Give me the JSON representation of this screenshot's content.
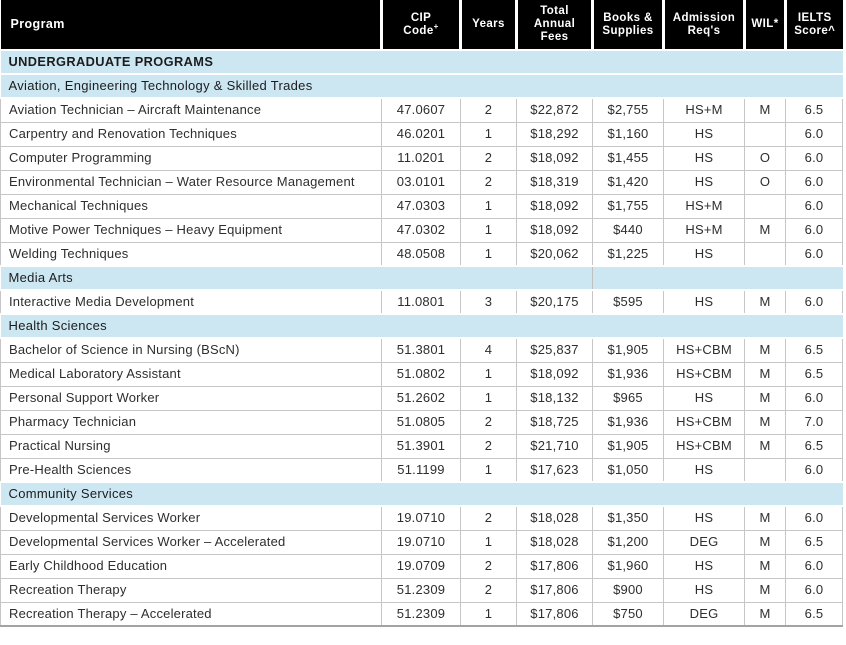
{
  "colors": {
    "header_bg": "#000000",
    "header_text": "#ffffff",
    "band_bg": "#cde7f2",
    "grid_line": "#c6c6c6",
    "body_text": "#2e2e2e"
  },
  "table": {
    "header": {
      "columns": [
        {
          "id": "program",
          "lines": [
            "Program"
          ]
        },
        {
          "id": "cip-code",
          "lines": [
            "CIP",
            "Code"
          ],
          "sup": "+"
        },
        {
          "id": "years",
          "lines": [
            "Years"
          ]
        },
        {
          "id": "total-annual-fees",
          "lines": [
            "Total",
            "Annual",
            "Fees"
          ]
        },
        {
          "id": "books-supplies",
          "lines": [
            "Books &",
            "Supplies"
          ]
        },
        {
          "id": "admission-reqs",
          "lines": [
            "Admission",
            "Req's"
          ]
        },
        {
          "id": "wil",
          "lines": [
            "WIL*"
          ]
        },
        {
          "id": "ielts-score",
          "lines": [
            "IELTS",
            "Score^"
          ]
        }
      ]
    },
    "rows": [
      {
        "type": "group",
        "label": "UNDERGRADUATE PROGRAMS"
      },
      {
        "type": "section",
        "label": "Aviation, Engineering Technology & Skilled Trades"
      },
      {
        "type": "program",
        "program": "Aviation Technician – Aircraft Maintenance",
        "cip": "47.0607",
        "years": "2",
        "fees": "$22,872",
        "books": "$2,755",
        "admission": "HS+M",
        "wil": "M",
        "ielts": "6.5"
      },
      {
        "type": "program",
        "program": "Carpentry and Renovation Techniques",
        "cip": "46.0201",
        "years": "1",
        "fees": "$18,292",
        "books": "$1,160",
        "admission": "HS",
        "wil": "",
        "ielts": "6.0"
      },
      {
        "type": "program",
        "program": "Computer Programming",
        "cip": "11.0201",
        "years": "2",
        "fees": "$18,092",
        "books": "$1,455",
        "admission": "HS",
        "wil": "O",
        "ielts": "6.0"
      },
      {
        "type": "program",
        "program": "Environmental Technician – Water Resource Management",
        "cip": "03.0101",
        "years": "2",
        "fees": "$18,319",
        "books": "$1,420",
        "admission": "HS",
        "wil": "O",
        "ielts": "6.0"
      },
      {
        "type": "program",
        "program": "Mechanical Techniques",
        "cip": "47.0303",
        "years": "1",
        "fees": "$18,092",
        "books": "$1,755",
        "admission": "HS+M",
        "wil": "",
        "ielts": "6.0"
      },
      {
        "type": "program",
        "program": "Motive Power Techniques – Heavy Equipment",
        "cip": "47.0302",
        "years": "1",
        "fees": "$18,092",
        "books": "$440",
        "admission": "HS+M",
        "wil": "M",
        "ielts": "6.0"
      },
      {
        "type": "program",
        "program": "Welding Techniques",
        "cip": "48.0508",
        "years": "1",
        "fees": "$20,062",
        "books": "$1,225",
        "admission": "HS",
        "wil": "",
        "ielts": "6.0"
      },
      {
        "type": "section",
        "label": "Media Arts",
        "split_divider": true
      },
      {
        "type": "program",
        "program": "Interactive Media Development",
        "cip": "11.0801",
        "years": "3",
        "fees": "$20,175",
        "books": "$595",
        "admission": "HS",
        "wil": "M",
        "ielts": "6.0"
      },
      {
        "type": "section",
        "label": "Health Sciences"
      },
      {
        "type": "program",
        "program": "Bachelor of Science in Nursing (BScN)",
        "cip": "51.3801",
        "years": "4",
        "fees": "$25,837",
        "books": "$1,905",
        "admission": "HS+CBM",
        "wil": "M",
        "ielts": "6.5"
      },
      {
        "type": "program",
        "program": "Medical Laboratory Assistant",
        "cip": "51.0802",
        "years": "1",
        "fees": "$18,092",
        "books": "$1,936",
        "admission": "HS+CBM",
        "wil": "M",
        "ielts": "6.5"
      },
      {
        "type": "program",
        "program": "Personal Support Worker",
        "cip": "51.2602",
        "years": "1",
        "fees": "$18,132",
        "books": "$965",
        "admission": "HS",
        "wil": "M",
        "ielts": "6.0"
      },
      {
        "type": "program",
        "program": "Pharmacy Technician",
        "cip": "51.0805",
        "years": "2",
        "fees": "$18,725",
        "books": "$1,936",
        "admission": "HS+CBM",
        "wil": "M",
        "ielts": "7.0"
      },
      {
        "type": "program",
        "program": "Practical Nursing",
        "cip": "51.3901",
        "years": "2",
        "fees": "$21,710",
        "books": "$1,905",
        "admission": "HS+CBM",
        "wil": "M",
        "ielts": "6.5"
      },
      {
        "type": "program",
        "program": "Pre-Health Sciences",
        "cip": "51.1199",
        "years": "1",
        "fees": "$17,623",
        "books": "$1,050",
        "admission": "HS",
        "wil": "",
        "ielts": "6.0"
      },
      {
        "type": "section",
        "label": "Community Services"
      },
      {
        "type": "program",
        "program": "Developmental Services Worker",
        "cip": "19.0710",
        "years": "2",
        "fees": "$18,028",
        "books": "$1,350",
        "admission": "HS",
        "wil": "M",
        "ielts": "6.0"
      },
      {
        "type": "program",
        "program": "Developmental Services Worker – Accelerated",
        "cip": "19.0710",
        "years": "1",
        "fees": "$18,028",
        "books": "$1,200",
        "admission": "DEG",
        "wil": "M",
        "ielts": "6.5"
      },
      {
        "type": "program",
        "program": "Early Childhood Education",
        "cip": "19.0709",
        "years": "2",
        "fees": "$17,806",
        "books": "$1,960",
        "admission": "HS",
        "wil": "M",
        "ielts": "6.0"
      },
      {
        "type": "program",
        "program": "Recreation Therapy",
        "cip": "51.2309",
        "years": "2",
        "fees": "$17,806",
        "books": "$900",
        "admission": "HS",
        "wil": "M",
        "ielts": "6.0"
      },
      {
        "type": "program",
        "program": "Recreation Therapy – Accelerated",
        "cip": "51.2309",
        "years": "1",
        "fees": "$17,806",
        "books": "$750",
        "admission": "DEG",
        "wil": "M",
        "ielts": "6.5"
      }
    ]
  }
}
